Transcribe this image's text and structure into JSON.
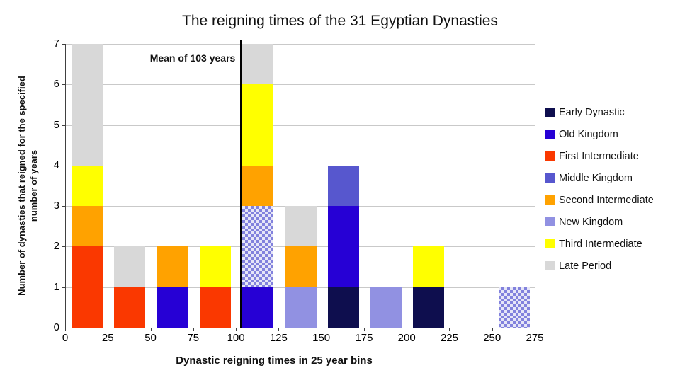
{
  "chart_data": {
    "type": "bar",
    "stacked": true,
    "title": "The reigning times of the 31 Egyptian Dynasties",
    "xlabel": "Dynastic reigning times in 25 year bins",
    "ylabel": "Number of dynasties  that reigned for the specified\nnumber of years",
    "xlim": [
      0,
      275
    ],
    "ylim": [
      0,
      7
    ],
    "x_ticks": [
      0,
      25,
      50,
      75,
      100,
      125,
      150,
      175,
      200,
      225,
      250,
      275
    ],
    "y_ticks": [
      0,
      1,
      2,
      3,
      4,
      5,
      6,
      7
    ],
    "bin_width": 25,
    "grid": "horizontal",
    "legend_position": "right",
    "annotation": {
      "text": "Mean of 103 years",
      "x": 103
    },
    "pattern_fill": {
      "color1": "#8282DD",
      "color2": "#E6E6F7"
    },
    "legend": [
      {
        "label": "Early Dynastic",
        "color": "#0E0E4E"
      },
      {
        "label": "Old Kingdom",
        "color": "#2600D5"
      },
      {
        "label": "First Intermediate",
        "color": "#FA3800"
      },
      {
        "label": "Middle Kingdom",
        "color": "#5757CE"
      },
      {
        "label": "Second Intermediate",
        "color": "#FFA200"
      },
      {
        "label": "New Kingdom",
        "color": "#9191E2"
      },
      {
        "label": "Third Intermediate",
        "color": "#FFFF00"
      },
      {
        "label": "Late Period",
        "color": "#D8D8D8"
      }
    ],
    "bars": [
      {
        "bin_start": 0,
        "total": 7,
        "segments": [
          {
            "series": "First Intermediate",
            "value": 2
          },
          {
            "series": "Second Intermediate",
            "value": 1
          },
          {
            "series": "Third Intermediate",
            "value": 1
          },
          {
            "series": "Late Period",
            "value": 3
          }
        ]
      },
      {
        "bin_start": 25,
        "total": 2,
        "segments": [
          {
            "series": "First Intermediate",
            "value": 1
          },
          {
            "series": "Late Period",
            "value": 1
          }
        ]
      },
      {
        "bin_start": 50,
        "total": 2,
        "segments": [
          {
            "series": "Old Kingdom",
            "value": 1
          },
          {
            "series": "Second Intermediate",
            "value": 1
          }
        ]
      },
      {
        "bin_start": 75,
        "total": 2,
        "segments": [
          {
            "series": "First Intermediate",
            "value": 1
          },
          {
            "series": "Third Intermediate",
            "value": 1
          }
        ]
      },
      {
        "bin_start": 100,
        "total": 7,
        "segments": [
          {
            "series": "Old Kingdom",
            "value": 1
          },
          {
            "series": "New Kingdom",
            "value": 2,
            "pattern": true
          },
          {
            "series": "Second Intermediate",
            "value": 1
          },
          {
            "series": "Third Intermediate",
            "value": 2
          },
          {
            "series": "Late Period",
            "value": 1
          }
        ]
      },
      {
        "bin_start": 125,
        "total": 3,
        "segments": [
          {
            "series": "New Kingdom",
            "value": 1
          },
          {
            "series": "Second Intermediate",
            "value": 1
          },
          {
            "series": "Late Period",
            "value": 1
          }
        ]
      },
      {
        "bin_start": 150,
        "total": 4,
        "segments": [
          {
            "series": "Early Dynastic",
            "value": 1
          },
          {
            "series": "Old Kingdom",
            "value": 2
          },
          {
            "series": "Middle Kingdom",
            "value": 1
          }
        ]
      },
      {
        "bin_start": 175,
        "total": 1,
        "segments": [
          {
            "series": "New Kingdom",
            "value": 1
          }
        ]
      },
      {
        "bin_start": 200,
        "total": 2,
        "segments": [
          {
            "series": "Early Dynastic",
            "value": 1
          },
          {
            "series": "Third Intermediate",
            "value": 1
          }
        ]
      },
      {
        "bin_start": 225,
        "total": 0,
        "segments": []
      },
      {
        "bin_start": 250,
        "total": 1,
        "segments": [
          {
            "series": "New Kingdom",
            "value": 1,
            "pattern": true
          }
        ]
      }
    ]
  }
}
